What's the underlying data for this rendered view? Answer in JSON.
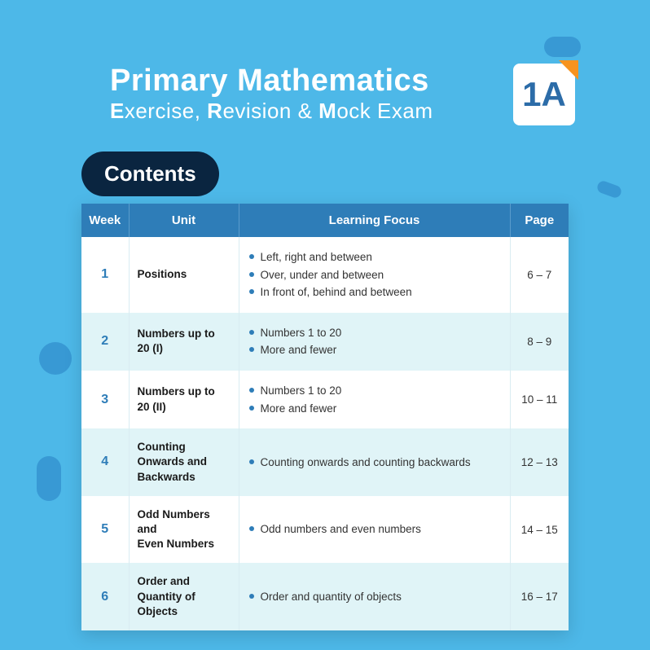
{
  "colors": {
    "page_bg": "#4db8e8",
    "blob": "#3899d4",
    "header_blue": "#2e7db8",
    "badge_accent": "#f7931e",
    "dark_pill": "#0a2540",
    "alt_row": "#e0f4f7",
    "bullet": "#2e7db8"
  },
  "header": {
    "title_line1": "Primary Mathematics",
    "subtitle_parts": [
      "E",
      "xercise, ",
      "R",
      "evision & ",
      "M",
      "ock Exam"
    ],
    "badge": "1A",
    "contents_label": "Contents"
  },
  "table": {
    "columns": [
      "Week",
      "Unit",
      "Learning Focus",
      "Page"
    ],
    "rows": [
      {
        "week": "1",
        "unit": "Positions",
        "focus": [
          "Left, right and between",
          "Over, under and between",
          "In front of, behind and between"
        ],
        "page": "6 – 7"
      },
      {
        "week": "2",
        "unit": "Numbers up to 20 (I)",
        "focus": [
          "Numbers 1 to 20",
          "More and fewer"
        ],
        "page": "8 – 9"
      },
      {
        "week": "3",
        "unit": "Numbers up to 20 (II)",
        "focus": [
          "Numbers 1 to 20",
          "More and fewer"
        ],
        "page": "10 – 11"
      },
      {
        "week": "4",
        "unit": "Counting Onwards and Backwards",
        "focus": [
          "Counting onwards and counting backwards"
        ],
        "page": "12 – 13"
      },
      {
        "week": "5",
        "unit": "Odd Numbers and\nEven Numbers",
        "focus": [
          "Odd numbers and even numbers"
        ],
        "page": "14 – 15"
      },
      {
        "week": "6",
        "unit": "Order and Quantity of Objects",
        "focus": [
          "Order and quantity of objects"
        ],
        "page": "16 – 17"
      }
    ]
  }
}
